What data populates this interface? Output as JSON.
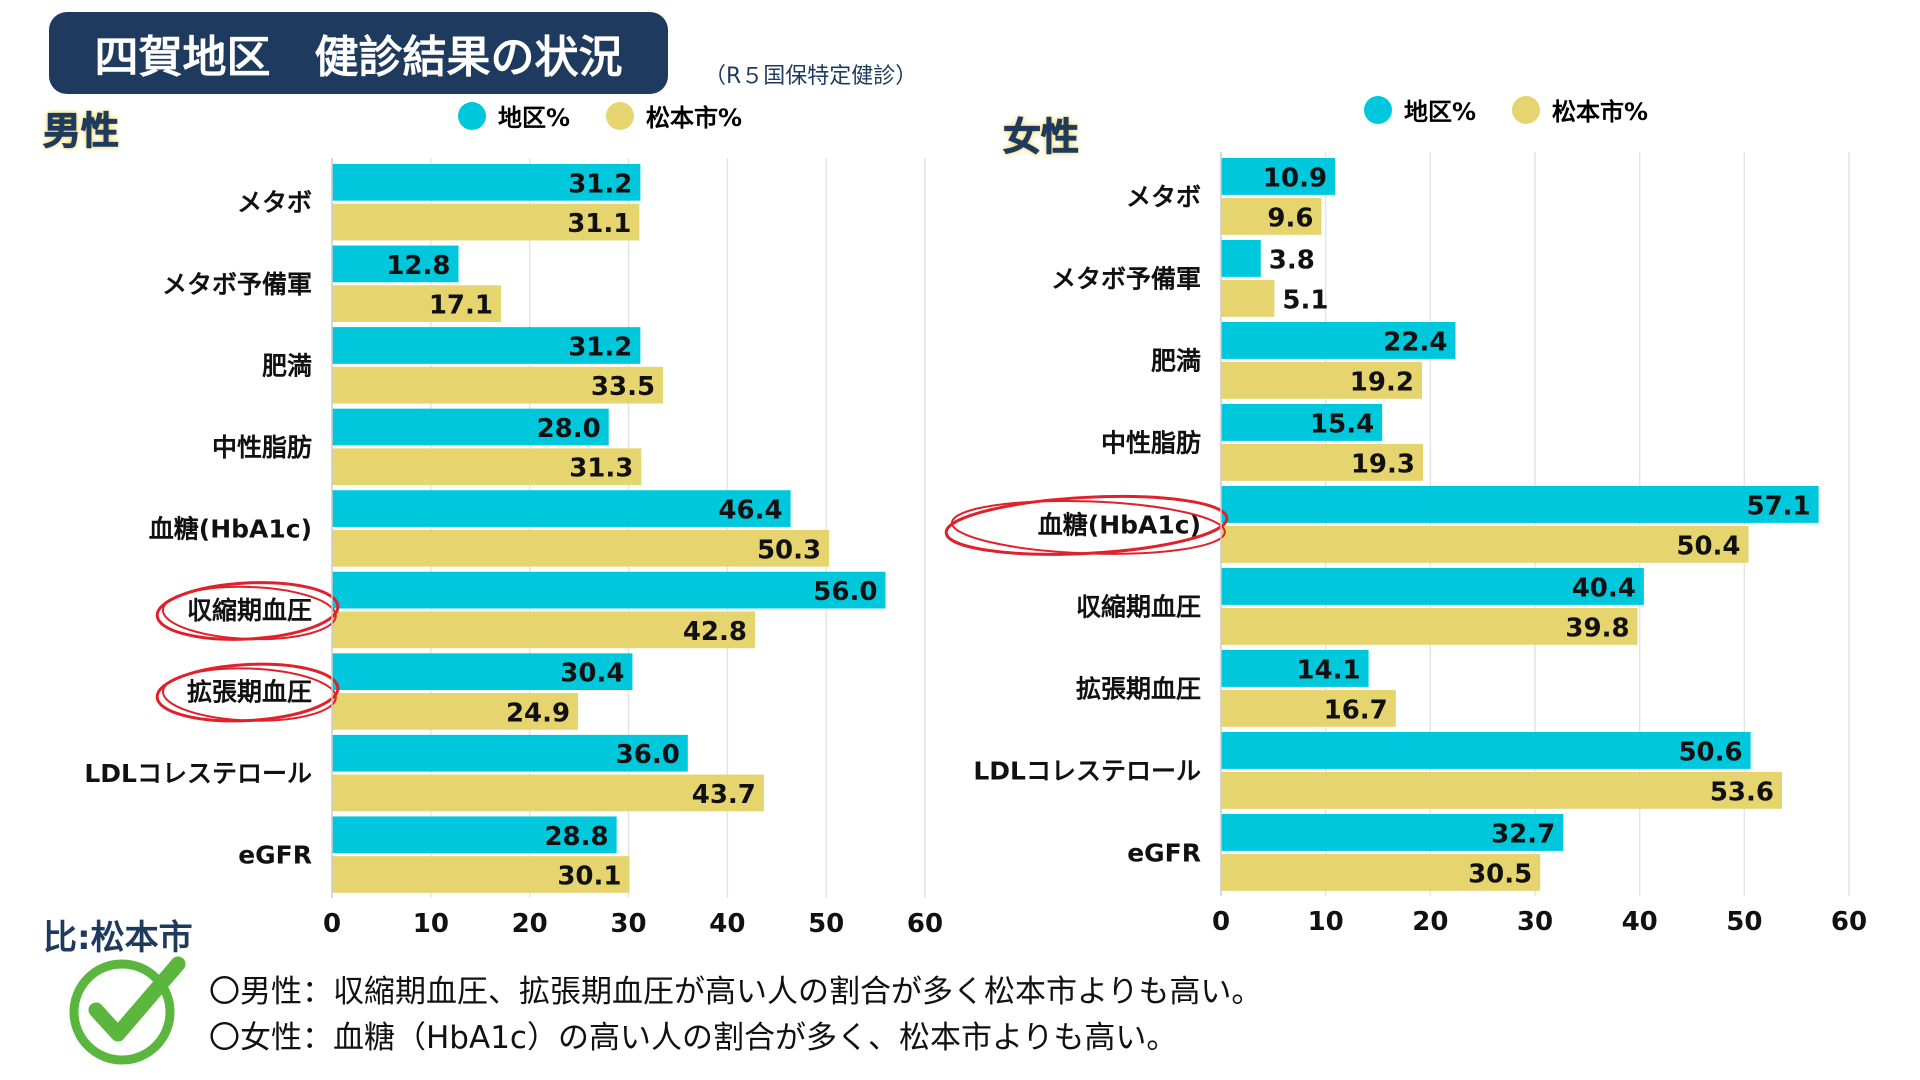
{
  "title": "四賀地区　健診結果の状況",
  "subtitle": "（R５国保特定健診）",
  "colors": {
    "district": "#00c8dc",
    "city": "#e6d46e",
    "title_bg": "#1e3a5f",
    "circle": "#e0202a"
  },
  "chart_data": [
    {
      "type": "bar",
      "orientation": "horizontal",
      "panel_label": "男性",
      "xlim": [
        0,
        60
      ],
      "xticks": [
        0,
        10,
        20,
        30,
        40,
        50,
        60
      ],
      "grid": true,
      "legend": "top",
      "categories": [
        "メタボ",
        "メタボ予備軍",
        "肥満",
        "中性脂肪",
        "血糖(HbA1c)",
        "収縮期血圧",
        "拡張期血圧",
        "LDLコレステロール",
        "eGFR"
      ],
      "circled": [
        "収縮期血圧",
        "拡張期血圧"
      ],
      "series": [
        {
          "name": "地区%",
          "values": [
            31.2,
            12.8,
            31.2,
            28.0,
            46.4,
            56.0,
            30.4,
            36.0,
            28.8
          ]
        },
        {
          "name": "松本市%",
          "values": [
            31.1,
            17.1,
            33.5,
            31.3,
            50.3,
            42.8,
            24.9,
            43.7,
            30.1
          ]
        }
      ]
    },
    {
      "type": "bar",
      "orientation": "horizontal",
      "panel_label": "女性",
      "xlim": [
        0,
        60
      ],
      "xticks": [
        0,
        10,
        20,
        30,
        40,
        50,
        60
      ],
      "grid": true,
      "legend": "top",
      "categories": [
        "メタボ",
        "メタボ予備軍",
        "肥満",
        "中性脂肪",
        "血糖(HbA1c)",
        "収縮期血圧",
        "拡張期血圧",
        "LDLコレステロール",
        "eGFR"
      ],
      "circled": [
        "血糖(HbA1c)"
      ],
      "series": [
        {
          "name": "地区%",
          "values": [
            10.9,
            3.8,
            22.4,
            15.4,
            57.1,
            40.4,
            14.1,
            50.6,
            32.7
          ]
        },
        {
          "name": "松本市%",
          "values": [
            9.6,
            5.1,
            19.2,
            19.3,
            50.4,
            39.8,
            16.7,
            53.6,
            30.5
          ]
        }
      ]
    }
  ],
  "notes": {
    "heading": "比:松本市",
    "icon": "checkmark-icon",
    "lines": [
      "〇男性：収縮期血圧、拡張期血圧が高い人の割合が多く松本市よりも高い。",
      "〇女性：血糖（HbA1c）の高い人の割合が多く、松本市よりも高い。"
    ]
  }
}
